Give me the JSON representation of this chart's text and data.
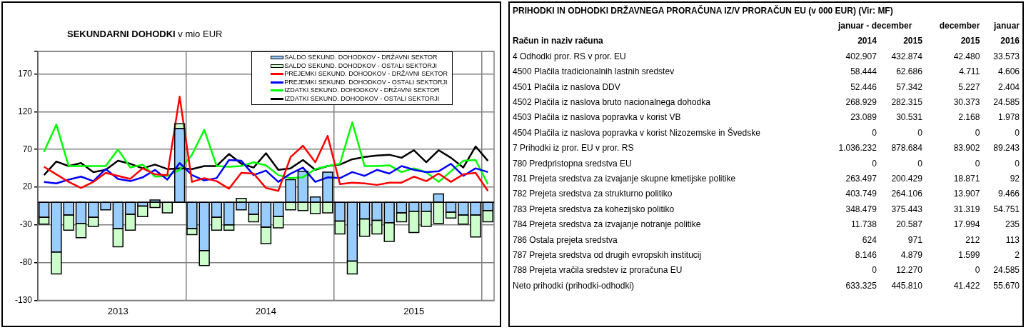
{
  "chart_data": [
    {
      "type": "bar",
      "title": "SEKUNDARNI DOHODKI",
      "subtitle": "v mio EUR",
      "stacked": true,
      "categories": [
        null,
        null,
        null,
        null,
        null,
        null,
        "2013",
        null,
        null,
        null,
        null,
        null,
        null,
        null,
        null,
        null,
        null,
        null,
        "2014",
        null,
        null,
        null,
        null,
        null,
        null,
        null,
        null,
        null,
        null,
        null,
        "2015",
        null,
        null,
        null,
        null,
        null,
        null
      ],
      "series": [
        {
          "name": "SALDO SEKUND. DOHODKOV - DRŽAVNI SEKTOR",
          "type": "bar",
          "color": "#99ccff",
          "values": [
            -20,
            -66,
            -17,
            -28,
            -20,
            -10,
            -35,
            -16,
            -5,
            3,
            0,
            98,
            -35,
            -64,
            -20,
            -30,
            -10,
            -16,
            -33,
            -19,
            30,
            41,
            7,
            40,
            -25,
            -78,
            -22,
            -24,
            -27,
            -14,
            -12,
            -12,
            11,
            -13,
            -17,
            -17,
            -11
          ]
        },
        {
          "name": "SALDO SEKUND. DOHODKOV - OSTALI SEKTORJI",
          "type": "bar",
          "color": "#ccffcc",
          "values": [
            -9,
            -29,
            -20,
            -19,
            -12,
            0,
            -24,
            -21,
            -14,
            -7,
            -14,
            6,
            -8,
            -20,
            -17,
            -7,
            5,
            -10,
            -22,
            -15,
            -10,
            -11,
            -15,
            -14,
            -17,
            -17,
            -23,
            -18,
            -25,
            -12,
            -28,
            -20,
            -28,
            -8,
            -12,
            -29,
            -15
          ]
        },
        {
          "name": "PREJEMKI SEKUND. DOHODKOV - DRŽAVNI SEKTOR",
          "type": "line",
          "color": "#ff0000",
          "values": [
            47,
            37,
            27,
            19,
            27,
            39,
            35,
            31,
            45,
            37,
            36,
            140,
            27,
            32,
            28,
            18,
            39,
            38,
            19,
            15,
            60,
            75,
            53,
            88,
            24,
            26,
            25,
            23,
            26,
            26,
            34,
            28,
            38,
            27,
            37,
            39,
            15
          ]
        },
        {
          "name": "PREJEMKI SEKUND. DOHODKOV - OSTALI SEKTORJI",
          "type": "line",
          "color": "#0000ff",
          "values": [
            27,
            25,
            30,
            34,
            28,
            44,
            31,
            28,
            33,
            43,
            30,
            52,
            36,
            29,
            32,
            56,
            55,
            36,
            42,
            27,
            38,
            46,
            27,
            33,
            32,
            40,
            35,
            43,
            38,
            48,
            43,
            40,
            41,
            51,
            35,
            45,
            40
          ]
        },
        {
          "name": "IZDATKI SEKUND. DOHODKOV - DRŽAVNI SEKTOR",
          "type": "line",
          "color": "#00ff00",
          "values": [
            67,
            103,
            48,
            48,
            48,
            48,
            70,
            46,
            50,
            34,
            35,
            43,
            63,
            96,
            48,
            47,
            48,
            53,
            49,
            36,
            32,
            33,
            44,
            48,
            51,
            106,
            48,
            48,
            49,
            40,
            45,
            40,
            27,
            41,
            55,
            56,
            24
          ]
        },
        {
          "name": "IZDATKI SEKUND. DOHODKOV - OSTALI SEKTORJI",
          "type": "line",
          "color": "#000000",
          "values": [
            36,
            54,
            48,
            52,
            40,
            43,
            55,
            51,
            45,
            50,
            44,
            45,
            44,
            48,
            48,
            64,
            51,
            46,
            65,
            43,
            45,
            56,
            43,
            48,
            50,
            57,
            60,
            62,
            63,
            59,
            69,
            53,
            69,
            59,
            46,
            74,
            55
          ]
        }
      ],
      "ylim": [
        -130,
        200
      ],
      "yticks": [
        -130,
        -80,
        -30,
        20,
        70,
        120,
        170,
        {
          "value": 200,
          "label": null
        }
      ],
      "grid": true,
      "legend": "top right"
    },
    {
      "type": "other",
      "title": "PRIHODKI IN ODHODKI DRŽAVNEGA PRORAČUNA IZ/V PRORAČUN EU (v 000 EUR) (Vir: MF)",
      "annotations": [
        "januar - december",
        "december",
        "januar",
        "Račun in naziv računa"
      ],
      "categories": [
        "4 Odhodki pror. RS v pror. EU",
        "4500 Plačila tradicionalnih lastnih sredstev",
        "4501 Plačila iz naslova DDV",
        "4502 Plačila iz naslova bruto nacionalnega dohodka",
        "4503 Plačila iz naslova popravka v korist VB",
        "4504 Plačila iz naslova popravka v korist Nizozemske in Švedske",
        "7 Prihodki iz pror. EU v pror. RS",
        "780 Predpristopna sredstva EU",
        "781 Prejeta sredstva za izvajanje skupne kmetijske politike",
        "782 Prejeta sredstva za strukturno politiko",
        "783 Prejeta sredstva za kohezijsko politiko",
        "784 Prejeta sredstva za izvajanje notranje politike",
        "786 Ostala prejeta sredstva",
        "787 Prejeta sredstva od drugih evropskih institucij",
        "788 Prejeta vračila sredstev iz proračuna EU",
        "Neto prihodki (prihodki-odhodki)"
      ],
      "series": [
        {
          "name": "2014",
          "values": [
            402907,
            58444,
            52446,
            268929,
            23089,
            0,
            1036232,
            0,
            263497,
            403749,
            348479,
            11738,
            624,
            8146,
            0,
            633325
          ],
          "value_labels": [
            "402.907",
            "58.444",
            "52.446",
            "268.929",
            "23.089",
            "0",
            "1.036.232",
            "0",
            "263.497",
            "403.749",
            "348.479",
            "11.738",
            "624",
            "8.146",
            "0",
            "633.325"
          ]
        },
        {
          "name": "2015",
          "values": [
            432874,
            62686,
            57342,
            282315,
            30531,
            0,
            878684,
            0,
            200429,
            264106,
            375443,
            20587,
            971,
            4879,
            12270,
            445810
          ],
          "value_labels": [
            "432.874",
            "62.686",
            "57.342",
            "282.315",
            "30.531",
            "0",
            "878.684",
            "0",
            "200.429",
            "264.106",
            "375.443",
            "20.587",
            "971",
            "4.879",
            "12.270",
            "445.810"
          ]
        },
        {
          "name": "2015",
          "values": [
            42480,
            4711,
            5227,
            30373,
            2168,
            0,
            83902,
            0,
            18871,
            13907,
            31319,
            17994,
            212,
            1599,
            0,
            41422
          ],
          "value_labels": [
            "42.480",
            "4.711",
            "5.227",
            "30.373",
            "2.168",
            "0",
            "83.902",
            "0",
            "18.871",
            "13.907",
            "31.319",
            "17.994",
            "212",
            "1.599",
            "0",
            "41.422"
          ]
        },
        {
          "name": "2016",
          "values": [
            33573,
            4606,
            2404,
            24585,
            1978,
            0,
            89243,
            0,
            92,
            9466,
            54751,
            235,
            113,
            2,
            24585,
            55670
          ],
          "value_labels": [
            "33.573",
            "4.606",
            "2.404",
            "24.585",
            "1.978",
            "0",
            "89.243",
            "0",
            "92",
            "9.466",
            "54.751",
            "235",
            "113",
            "2",
            "24.585",
            "55.670"
          ]
        }
      ]
    }
  ]
}
